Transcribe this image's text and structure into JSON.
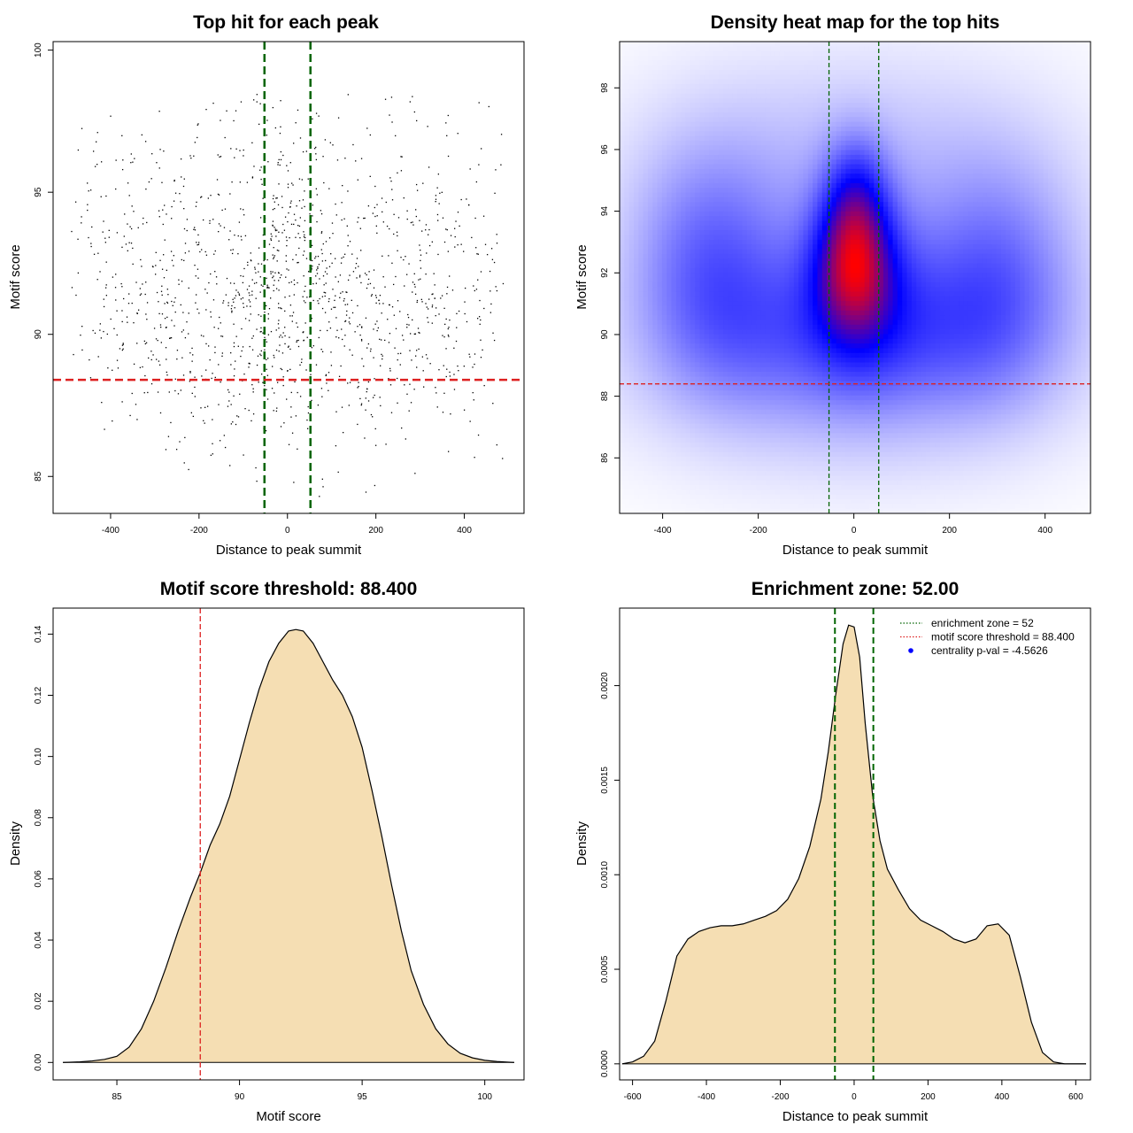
{
  "chart_data": [
    {
      "type": "scatter",
      "title": "Top hit for each peak",
      "xlabel": "Distance to peak summit",
      "ylabel": "Motif score",
      "xlim": [
        -530,
        535
      ],
      "ylim": [
        83.7,
        100.3
      ],
      "xticks": [
        -400,
        -200,
        0,
        200,
        400
      ],
      "yticks": [
        85,
        90,
        95,
        100
      ],
      "xtick_labels": [
        "-400",
        "-200",
        "0",
        "200",
        "400"
      ],
      "ytick_labels": [
        "85",
        "90",
        "95",
        "100"
      ],
      "vlines": [
        -52,
        52
      ],
      "hline": 88.4,
      "vline_color": "#006400",
      "hline_color": "#dd2020",
      "point_color": "#000000",
      "n_points": 1400,
      "points_sampled_from": "kernel density of motif score vs distance to summit"
    },
    {
      "type": "heatmap",
      "title": "Density heat map for the top hits",
      "xlabel": "Distance to peak summit",
      "ylabel": "Motif score",
      "xlim": [
        -490,
        495
      ],
      "ylim": [
        84.2,
        99.5
      ],
      "xticks": [
        -400,
        -200,
        0,
        200,
        400
      ],
      "yticks": [
        86,
        88,
        90,
        92,
        94,
        96,
        98
      ],
      "xtick_labels": [
        "-400",
        "-200",
        "0",
        "200",
        "400"
      ],
      "ytick_labels": [
        "86",
        "88",
        "90",
        "92",
        "94",
        "96",
        "98"
      ],
      "vlines": [
        -52,
        52
      ],
      "hline": 88.4,
      "colors": [
        "#ffffff",
        "#0000ff",
        "#ff0000"
      ],
      "peak": {
        "x": 0,
        "y": 92.4
      },
      "density_components": [
        {
          "x": 0,
          "y": 92.5,
          "sx": 55,
          "sy": 1.6,
          "w": 1.0
        },
        {
          "x": 5,
          "y": 94.6,
          "sx": 45,
          "sy": 1.3,
          "w": 0.45
        },
        {
          "x": 15,
          "y": 91.2,
          "sx": 90,
          "sy": 2.0,
          "w": 0.55
        },
        {
          "x": -300,
          "y": 92.5,
          "sx": 110,
          "sy": 2.4,
          "w": 0.45
        },
        {
          "x": 300,
          "y": 92.0,
          "sx": 110,
          "sy": 2.4,
          "w": 0.42
        },
        {
          "x": -200,
          "y": 90.0,
          "sx": 140,
          "sy": 1.8,
          "w": 0.25
        },
        {
          "x": 200,
          "y": 90.0,
          "sx": 140,
          "sy": 1.8,
          "w": 0.25
        },
        {
          "x": 0,
          "y": 89.5,
          "sx": 300,
          "sy": 2.5,
          "w": 0.3
        },
        {
          "x": 0,
          "y": 95.5,
          "sx": 300,
          "sy": 2.5,
          "w": 0.2
        }
      ]
    },
    {
      "type": "area",
      "title": "Motif score threshold: 88.400",
      "xlabel": "Motif score",
      "ylabel": "Density",
      "xlim": [
        82.4,
        101.6
      ],
      "ylim": [
        -0.0057,
        0.1485
      ],
      "xticks": [
        85,
        90,
        95,
        100
      ],
      "yticks": [
        0,
        0.02,
        0.04,
        0.06,
        0.08,
        0.1,
        0.12,
        0.14
      ],
      "xtick_labels": [
        "85",
        "90",
        "95",
        "100"
      ],
      "ytick_labels": [
        "0.00",
        "0.02",
        "0.04",
        "0.06",
        "0.08",
        "0.10",
        "0.12",
        "0.14"
      ],
      "vline": 88.4,
      "vline_color": "#dd2020",
      "fill": "#f5deb3",
      "x": [
        82.8,
        83.5,
        84.0,
        84.5,
        85.0,
        85.5,
        86.0,
        86.5,
        87.0,
        87.5,
        88.0,
        88.4,
        88.8,
        89.2,
        89.6,
        90.0,
        90.4,
        90.8,
        91.2,
        91.6,
        92.0,
        92.3,
        92.6,
        93.0,
        93.4,
        93.8,
        94.2,
        94.6,
        95.0,
        95.4,
        95.8,
        96.2,
        96.6,
        97.0,
        97.5,
        98.0,
        98.5,
        99.0,
        99.5,
        100.0,
        100.5,
        101.2
      ],
      "y": [
        0.0,
        0.0002,
        0.0005,
        0.001,
        0.002,
        0.005,
        0.011,
        0.02,
        0.031,
        0.043,
        0.054,
        0.062,
        0.071,
        0.078,
        0.087,
        0.099,
        0.111,
        0.122,
        0.131,
        0.137,
        0.141,
        0.1415,
        0.141,
        0.137,
        0.131,
        0.125,
        0.12,
        0.113,
        0.103,
        0.089,
        0.074,
        0.058,
        0.043,
        0.03,
        0.019,
        0.011,
        0.006,
        0.003,
        0.0015,
        0.0007,
        0.0003,
        0.0
      ]
    },
    {
      "type": "area",
      "title": "Enrichment zone: 52.00",
      "xlabel": "Distance to peak summit",
      "ylabel": "Density",
      "xlim": [
        -635,
        640
      ],
      "ylim": [
        -8.5e-05,
        0.00241
      ],
      "xticks": [
        -600,
        -400,
        -200,
        0,
        200,
        400,
        600
      ],
      "yticks": [
        0,
        0.0005,
        0.001,
        0.0015,
        0.002
      ],
      "xtick_labels": [
        "-600",
        "-400",
        "-200",
        "0",
        "200",
        "400",
        "600"
      ],
      "ytick_labels": [
        "0.0000",
        "0.0005",
        "0.0010",
        "0.0015",
        "0.0020"
      ],
      "vlines": [
        -52,
        52
      ],
      "vline_color": "#006400",
      "fill": "#f5deb3",
      "x": [
        -628,
        -600,
        -570,
        -540,
        -510,
        -480,
        -450,
        -420,
        -390,
        -360,
        -330,
        -300,
        -270,
        -240,
        -210,
        -180,
        -150,
        -120,
        -90,
        -70,
        -50,
        -30,
        -15,
        0,
        15,
        30,
        50,
        70,
        90,
        120,
        150,
        180,
        210,
        240,
        270,
        300,
        330,
        360,
        390,
        420,
        450,
        480,
        510,
        540,
        570,
        600,
        628
      ],
      "y": [
        0.0,
        1e-05,
        4e-05,
        0.00012,
        0.00033,
        0.00057,
        0.00066,
        0.0007,
        0.00072,
        0.00073,
        0.00073,
        0.00074,
        0.00076,
        0.00078,
        0.00081,
        0.00087,
        0.00098,
        0.00115,
        0.0014,
        0.00165,
        0.00195,
        0.00222,
        0.00232,
        0.00231,
        0.00215,
        0.0018,
        0.00142,
        0.00118,
        0.00103,
        0.00092,
        0.00082,
        0.00076,
        0.00073,
        0.0007,
        0.00066,
        0.00064,
        0.00066,
        0.00073,
        0.00074,
        0.00068,
        0.00046,
        0.00022,
        6e-05,
        1e-05,
        0.0,
        0.0,
        0.0
      ],
      "legend": [
        {
          "label": "enrichment zone = 52",
          "color": "#006400",
          "style": "dotted-line"
        },
        {
          "label": "motif score threshold = 88.400",
          "color": "#dd2020",
          "style": "dotted-line"
        },
        {
          "label": "centrality p-val = -4.5626",
          "color": "#0000ff",
          "style": "point"
        }
      ],
      "legend_position": "top-right"
    }
  ]
}
